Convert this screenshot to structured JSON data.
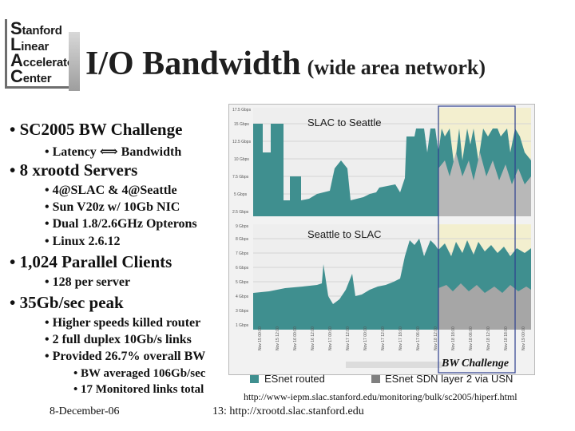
{
  "logo": {
    "lines": [
      {
        "cap": "S",
        "rest": "tanford"
      },
      {
        "cap": "L",
        "rest": "inear"
      },
      {
        "cap": "A",
        "rest": "ccelerator"
      },
      {
        "cap": "C",
        "rest": "enter"
      }
    ]
  },
  "title": {
    "main": "I/O Bandwidth",
    "sub": "(wide area network)"
  },
  "bullets": [
    {
      "level": 1,
      "text": "• SC2005 BW Challenge"
    },
    {
      "level": 2,
      "text": "• Latency ⟺ Bandwidth"
    },
    {
      "level": 1,
      "text": "• 8 xrootd Servers"
    },
    {
      "level": 2,
      "text": "• 4@SLAC & 4@Seattle"
    },
    {
      "level": 2,
      "text": "• Sun V20z w/ 10Gb NIC"
    },
    {
      "level": 2,
      "text": "• Dual 1.8/2.6GHz Opterons"
    },
    {
      "level": 2,
      "text": "• Linux 2.6.12"
    },
    {
      "level": 1,
      "text": "• 1,024 Parallel Clients"
    },
    {
      "level": 2,
      "text": "• 128 per server"
    },
    {
      "level": 1,
      "text": "• 35Gb/sec peak"
    },
    {
      "level": 2,
      "text": "• Higher speeds killed router"
    },
    {
      "level": 2,
      "text": "• 2 full duplex 10Gb/s links"
    },
    {
      "level": 2,
      "text": "• Provided 26.7% overall BW"
    },
    {
      "level": 3,
      "text": "• BW averaged 106Gb/sec"
    },
    {
      "level": 3,
      "text": "• 17 Monitored links total"
    }
  ],
  "graph": {
    "top_label": "SLAC to Seattle",
    "bottom_label": "Seattle to SLAC",
    "highlight_label": "BW Challenge",
    "colors": {
      "esnet_routed": "#3f8f8f",
      "esnet_sdn": "#7f7f7f",
      "background_band": "#f3efcf",
      "panel_bg": "#eeeeee"
    }
  },
  "legend": {
    "items": [
      {
        "label": "ESnet routed",
        "color": "#3f8f8f"
      },
      {
        "label": "ESnet SDN layer 2 via USN",
        "color": "#7f7f7f"
      }
    ]
  },
  "footer": {
    "url": "http://www-iepm.slac.stanford.edu/monitoring/bulk/sc2005/hiperf.html",
    "date": "8-December-06",
    "slide": "13: http://xrootd.slac.stanford.edu"
  }
}
